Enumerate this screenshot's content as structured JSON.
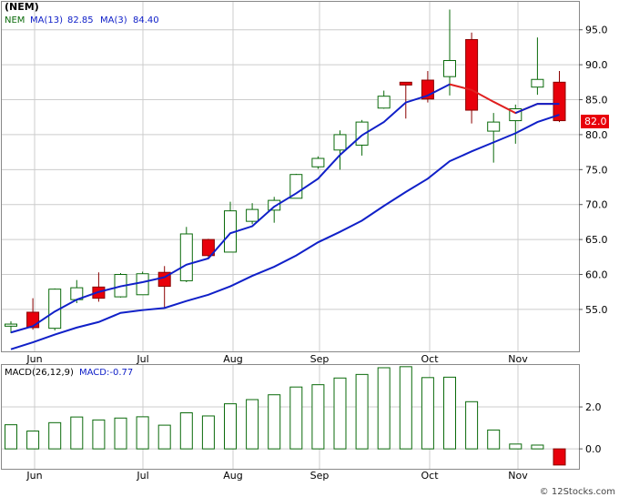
{
  "symbol": "(NEM)",
  "legend": {
    "ticker": "NEM",
    "ma_long_label": "MA(13)",
    "ma_long_value": "82.85",
    "ma_short_label": "MA(3)",
    "ma_short_value": "84.40"
  },
  "last_price": "82.0",
  "macd_legend": {
    "label": "MACD(26,12,9)",
    "value_text": "MACD:-0.77"
  },
  "credit": "© 12Stocks.com",
  "colors": {
    "up": "#ffffff",
    "up_border": "#0a6a0a",
    "down": "#e8000b",
    "ma13": "#1020c8",
    "ma3_blue": "#1020c8",
    "ma3_red": "#e02020",
    "grid": "#cccccc",
    "price_box": "#e8000b"
  },
  "chart_data": [
    {
      "type": "candlestick",
      "title": "(NEM)",
      "x_labels": [
        "Jun",
        "Jul",
        "Aug",
        "Sep",
        "Oct",
        "Nov"
      ],
      "y_ticks": [
        "55.0",
        "60.0",
        "65.0",
        "70.0",
        "75.0",
        "80.0",
        "85.0",
        "90.0",
        "95.0"
      ],
      "ylim": [
        49.0,
        99.0
      ],
      "grid": true,
      "candles": [
        {
          "o": 52.6,
          "c": 52.9,
          "h": 53.3,
          "l": 51.6
        },
        {
          "o": 54.6,
          "c": 52.4,
          "h": 56.6,
          "l": 52.1
        },
        {
          "o": 52.3,
          "c": 57.9,
          "h": 58.0,
          "l": 52.0
        },
        {
          "o": 56.4,
          "c": 58.1,
          "h": 59.2,
          "l": 55.9
        },
        {
          "o": 58.2,
          "c": 56.6,
          "h": 60.3,
          "l": 56.1
        },
        {
          "o": 56.8,
          "c": 60.0,
          "h": 60.2,
          "l": 56.7
        },
        {
          "o": 57.1,
          "c": 60.1,
          "h": 60.4,
          "l": 57.1
        },
        {
          "o": 60.3,
          "c": 58.3,
          "h": 61.2,
          "l": 55.3
        },
        {
          "o": 59.1,
          "c": 65.8,
          "h": 66.8,
          "l": 58.9
        },
        {
          "o": 65.0,
          "c": 62.7,
          "h": 65.1,
          "l": 62.3
        },
        {
          "o": 63.2,
          "c": 69.1,
          "h": 70.4,
          "l": 63.2
        },
        {
          "o": 67.6,
          "c": 69.3,
          "h": 70.2,
          "l": 67.2
        },
        {
          "o": 69.2,
          "c": 70.6,
          "h": 71.1,
          "l": 67.4
        },
        {
          "o": 70.9,
          "c": 74.3,
          "h": 74.4,
          "l": 70.9
        },
        {
          "o": 75.4,
          "c": 76.6,
          "h": 76.9,
          "l": 75.1
        },
        {
          "o": 77.8,
          "c": 80.0,
          "h": 80.6,
          "l": 75.0
        },
        {
          "o": 78.5,
          "c": 81.8,
          "h": 82.1,
          "l": 77.0
        },
        {
          "o": 83.8,
          "c": 85.5,
          "h": 86.3,
          "l": 83.7
        },
        {
          "o": 87.5,
          "c": 87.1,
          "h": 87.5,
          "l": 82.3
        },
        {
          "o": 87.8,
          "c": 85.1,
          "h": 89.1,
          "l": 84.6
        },
        {
          "o": 88.3,
          "c": 90.6,
          "h": 97.9,
          "l": 85.6
        },
        {
          "o": 93.6,
          "c": 83.5,
          "h": 94.6,
          "l": 81.6
        },
        {
          "o": 80.5,
          "c": 81.8,
          "h": 83.1,
          "l": 76.0
        },
        {
          "o": 82.0,
          "c": 83.7,
          "h": 84.3,
          "l": 78.7
        },
        {
          "o": 86.8,
          "c": 87.9,
          "h": 93.9,
          "l": 85.7
        },
        {
          "o": 87.5,
          "c": 82.0,
          "h": 89.1,
          "l": 81.8
        }
      ],
      "series": [
        {
          "name": "MA(13)",
          "values": [
            49.3,
            50.3,
            51.4,
            52.4,
            53.2,
            54.5,
            54.9,
            55.2,
            56.2,
            57.1,
            58.3,
            59.8,
            61.1,
            62.7,
            64.6,
            66.1,
            67.7,
            69.8,
            71.8,
            73.7,
            76.2,
            77.6,
            78.9,
            80.2,
            81.8,
            82.85
          ]
        },
        {
          "name": "MA(3)",
          "values": [
            51.7,
            52.6,
            54.7,
            56.4,
            57.5,
            58.3,
            58.9,
            59.6,
            61.4,
            62.3,
            65.9,
            66.9,
            69.7,
            71.6,
            73.7,
            77.1,
            79.9,
            81.8,
            84.6,
            85.6,
            87.2,
            86.4,
            84.7,
            83.1,
            84.4,
            84.4
          ]
        }
      ]
    },
    {
      "type": "bar",
      "title": "MACD(26,12,9)",
      "y_ticks": [
        "0.0",
        "2.0"
      ],
      "ylim": [
        -0.95,
        4.0
      ],
      "values": [
        1.15,
        0.85,
        1.25,
        1.52,
        1.38,
        1.47,
        1.53,
        1.13,
        1.72,
        1.57,
        2.15,
        2.35,
        2.58,
        2.95,
        3.06,
        3.38,
        3.55,
        3.87,
        3.92,
        3.4,
        3.42,
        2.25,
        0.9,
        0.23,
        0.18,
        -0.77
      ]
    }
  ]
}
